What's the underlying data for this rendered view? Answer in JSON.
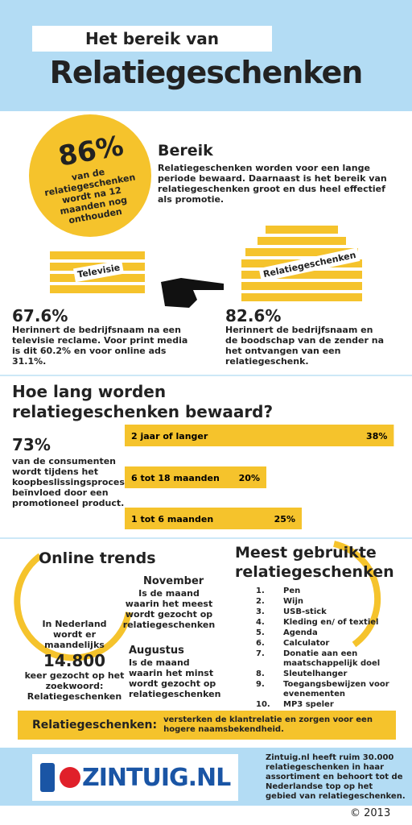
{
  "header": {
    "kicker": "Het bereik van",
    "title": "Relatiegeschenken"
  },
  "bereik": {
    "circle_value": "86%",
    "circle_text": "van de relatiegeschenken wordt na 12 maanden nog onthouden",
    "title": "Bereik",
    "text": "Relatiegeschenken worden voor een lange periode bewaard. Daarnaast is het bereik van relatiegeschenken groot en dus heel effectief als promotie."
  },
  "compare": {
    "left_label": "Televisie",
    "right_label": "Relatiegeschenken",
    "left_value": "67.6%",
    "left_text": "Herinnert de bedrijfsnaam na een televisie reclame. Voor print media is dit 60.2% en voor online ads 31.1%.",
    "right_value": "82.6%",
    "right_text": "Herinnert de bedrijfsnaam en de boodschap van de zender na het ontvangen van een relatiegeschenk."
  },
  "bewaard": {
    "title": "Hoe lang worden relatiegeschenken bewaard?",
    "stat_value": "73%",
    "stat_text": "van de consumenten wordt tijdens het koopbeslissingsproces beïnvloed door een promotioneel product.",
    "categories": [
      "2 jaar of langer",
      "6 tot 18 maanden",
      "1 tot 6 maanden"
    ],
    "values": [
      38,
      20,
      25
    ],
    "value_labels": [
      "38%",
      "20%",
      "25%"
    ],
    "color": "#f5c32c"
  },
  "online": {
    "title": "Online trends",
    "left_text_1": "In Nederland wordt er maandelijks",
    "number": "14.800",
    "left_text_2": "keer gezocht op het zoekwoord: Relatiegeschenken",
    "month_1": "November",
    "month_1_text": "Is de maand waarin het meest wordt gezocht op relatiegeschenken",
    "month_2": "Augustus",
    "month_2_text": "Is de maand waarin het minst wordt gezocht op relatiegeschenken"
  },
  "meest": {
    "title": "Meest gebruikte relatiegeschenken",
    "items": [
      {
        "num": "1.",
        "text": "Pen"
      },
      {
        "num": "2.",
        "text": "Wijn"
      },
      {
        "num": "3.",
        "text": "USB-stick"
      },
      {
        "num": "4.",
        "text": "Kleding en/ of textiel"
      },
      {
        "num": "5.",
        "text": "Agenda"
      },
      {
        "num": "6.",
        "text": "Calculator"
      },
      {
        "num": "7.",
        "text": "Donatie aan een maatschappelijk doel"
      },
      {
        "num": "8.",
        "text": "Sleutelhanger"
      },
      {
        "num": "9.",
        "text": "Toegangsbewijzen voor evenementen"
      },
      {
        "num": "10.",
        "text": "MP3 speler"
      }
    ]
  },
  "banner": {
    "label": "Relatiegeschenken:",
    "text": "versterken de klantrelatie en zorgen voor een hogere naamsbekendheid."
  },
  "footer": {
    "logo": "ZINTUIG.NL",
    "text": "Zintuig.nl heeft ruim 30.000 relatiegeschenken in haar assortiment en behoort tot de Nederlandse top op het gebied van relatiegeschenken.",
    "copyright": "© 2013"
  }
}
